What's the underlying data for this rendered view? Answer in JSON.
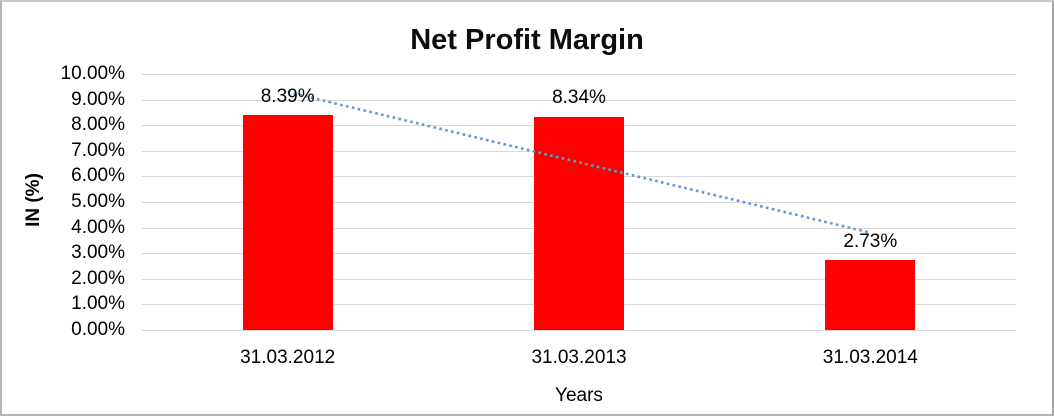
{
  "chart_data": {
    "type": "bar",
    "title": "Net Profit Margin",
    "categories": [
      "31.03.2012",
      "31.03.2013",
      "31.03.2014"
    ],
    "values": [
      8.39,
      8.34,
      2.73
    ],
    "data_labels": [
      "8.39%",
      "8.34%",
      "2.73%"
    ],
    "xlabel": "Years",
    "ylabel": "IN (%)",
    "ylim": [
      0,
      10
    ],
    "yticks": [
      {
        "value": 10,
        "label": "10.00%"
      },
      {
        "value": 9,
        "label": "9.00%"
      },
      {
        "value": 8,
        "label": "8.00%"
      },
      {
        "value": 7,
        "label": "7.00%"
      },
      {
        "value": 6,
        "label": "6.00%"
      },
      {
        "value": 5,
        "label": "5.00%"
      },
      {
        "value": 4,
        "label": "4.00%"
      },
      {
        "value": 3,
        "label": "3.00%"
      },
      {
        "value": 2,
        "label": "2.00%"
      },
      {
        "value": 1,
        "label": "1.00%"
      },
      {
        "value": 0,
        "label": "0.00%"
      }
    ],
    "grid": true,
    "legend": "none",
    "bar_color": "#ff0000",
    "gridline_color": "#d9d9d9",
    "trendline": {
      "type": "linear",
      "style": "dotted",
      "color": "#5b9bd5",
      "start_value": 9.3,
      "end_value": 3.8
    }
  }
}
